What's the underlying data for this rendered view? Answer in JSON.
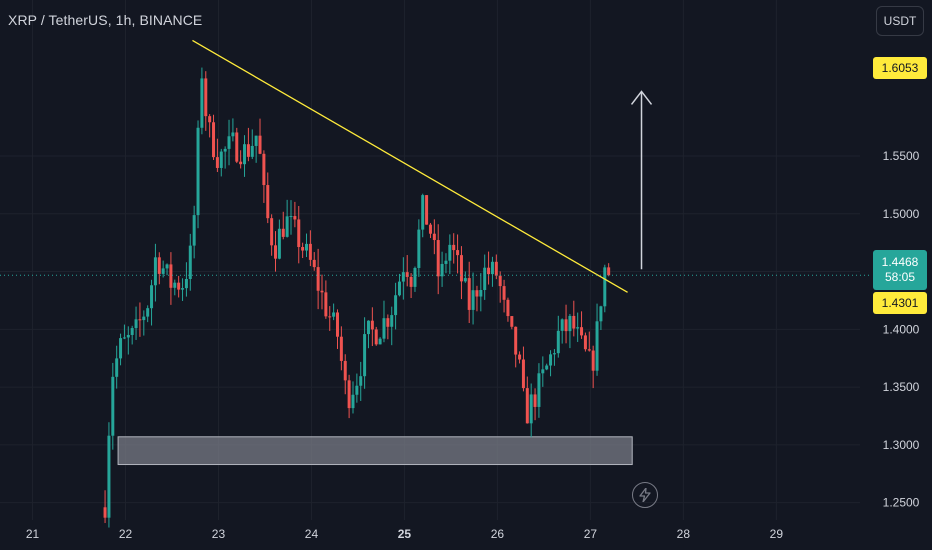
{
  "header": {
    "title": "XRP / TetherUS, 1h, BINANCE",
    "currency_button": "USDT"
  },
  "price_tags": {
    "target": "1.6053",
    "current": "1.4468",
    "countdown": "58:05",
    "breakout": "1.4301"
  },
  "colors": {
    "background": "#131722",
    "up": "#26a69a",
    "down": "#ef5350",
    "trendline": "#ffeb3b",
    "support_zone": "#787b86",
    "arrow": "#d1d4dc"
  },
  "icons": {
    "bolt": "lightning-icon",
    "arrow": "up-arrow-icon"
  },
  "chart_data": {
    "type": "candlestick",
    "interval": "1h",
    "x_tick_labels": [
      "21",
      "22",
      "23",
      "24",
      "25",
      "26",
      "27",
      "28",
      "29"
    ],
    "x_tick_days": [
      21,
      22,
      23,
      24,
      25,
      26,
      27,
      28,
      29
    ],
    "y_tick_labels": [
      "1.2500",
      "1.3000",
      "1.3500",
      "1.4000",
      "1.4500",
      "1.5000",
      "1.5500"
    ],
    "ylim": [
      1.235,
      1.685
    ],
    "xlim": [
      20.65,
      29.9
    ],
    "anchors": [
      [
        21.78,
        1.25
      ],
      [
        21.85,
        1.36
      ],
      [
        21.95,
        1.385
      ],
      [
        22.1,
        1.395
      ],
      [
        22.25,
        1.425
      ],
      [
        22.33,
        1.465
      ],
      [
        22.48,
        1.44
      ],
      [
        22.62,
        1.44
      ],
      [
        22.72,
        1.47
      ],
      [
        22.82,
        1.625
      ],
      [
        22.88,
        1.575
      ],
      [
        23.0,
        1.548
      ],
      [
        23.15,
        1.56
      ],
      [
        23.3,
        1.553
      ],
      [
        23.42,
        1.57
      ],
      [
        23.5,
        1.505
      ],
      [
        23.6,
        1.47
      ],
      [
        23.72,
        1.495
      ],
      [
        23.85,
        1.48
      ],
      [
        24.0,
        1.455
      ],
      [
        24.15,
        1.42
      ],
      [
        24.28,
        1.395
      ],
      [
        24.38,
        1.34
      ],
      [
        24.5,
        1.36
      ],
      [
        24.6,
        1.395
      ],
      [
        24.72,
        1.4
      ],
      [
        24.85,
        1.415
      ],
      [
        25.0,
        1.46
      ],
      [
        25.08,
        1.445
      ],
      [
        25.13,
        1.47
      ],
      [
        25.2,
        1.505
      ],
      [
        25.28,
        1.485
      ],
      [
        25.38,
        1.44
      ],
      [
        25.48,
        1.475
      ],
      [
        25.55,
        1.46
      ],
      [
        25.7,
        1.42
      ],
      [
        25.85,
        1.45
      ],
      [
        26.0,
        1.448
      ],
      [
        26.1,
        1.405
      ],
      [
        26.22,
        1.375
      ],
      [
        26.3,
        1.325
      ],
      [
        26.42,
        1.345
      ],
      [
        26.55,
        1.37
      ],
      [
        26.65,
        1.395
      ],
      [
        26.8,
        1.405
      ],
      [
        26.9,
        1.385
      ],
      [
        27.0,
        1.368
      ],
      [
        27.05,
        1.38
      ],
      [
        27.1,
        1.42
      ],
      [
        27.16,
        1.455
      ],
      [
        27.2,
        1.45
      ],
      [
        27.22,
        1.446
      ]
    ],
    "trendline": [
      [
        22.72,
        1.65
      ],
      [
        27.4,
        1.432
      ]
    ],
    "support_zone": {
      "x": [
        21.92,
        27.45
      ],
      "y": [
        1.283,
        1.307
      ]
    },
    "target_arrow": {
      "x": 27.55,
      "from": 1.452,
      "to": 1.605
    },
    "last_price": 1.4468
  }
}
